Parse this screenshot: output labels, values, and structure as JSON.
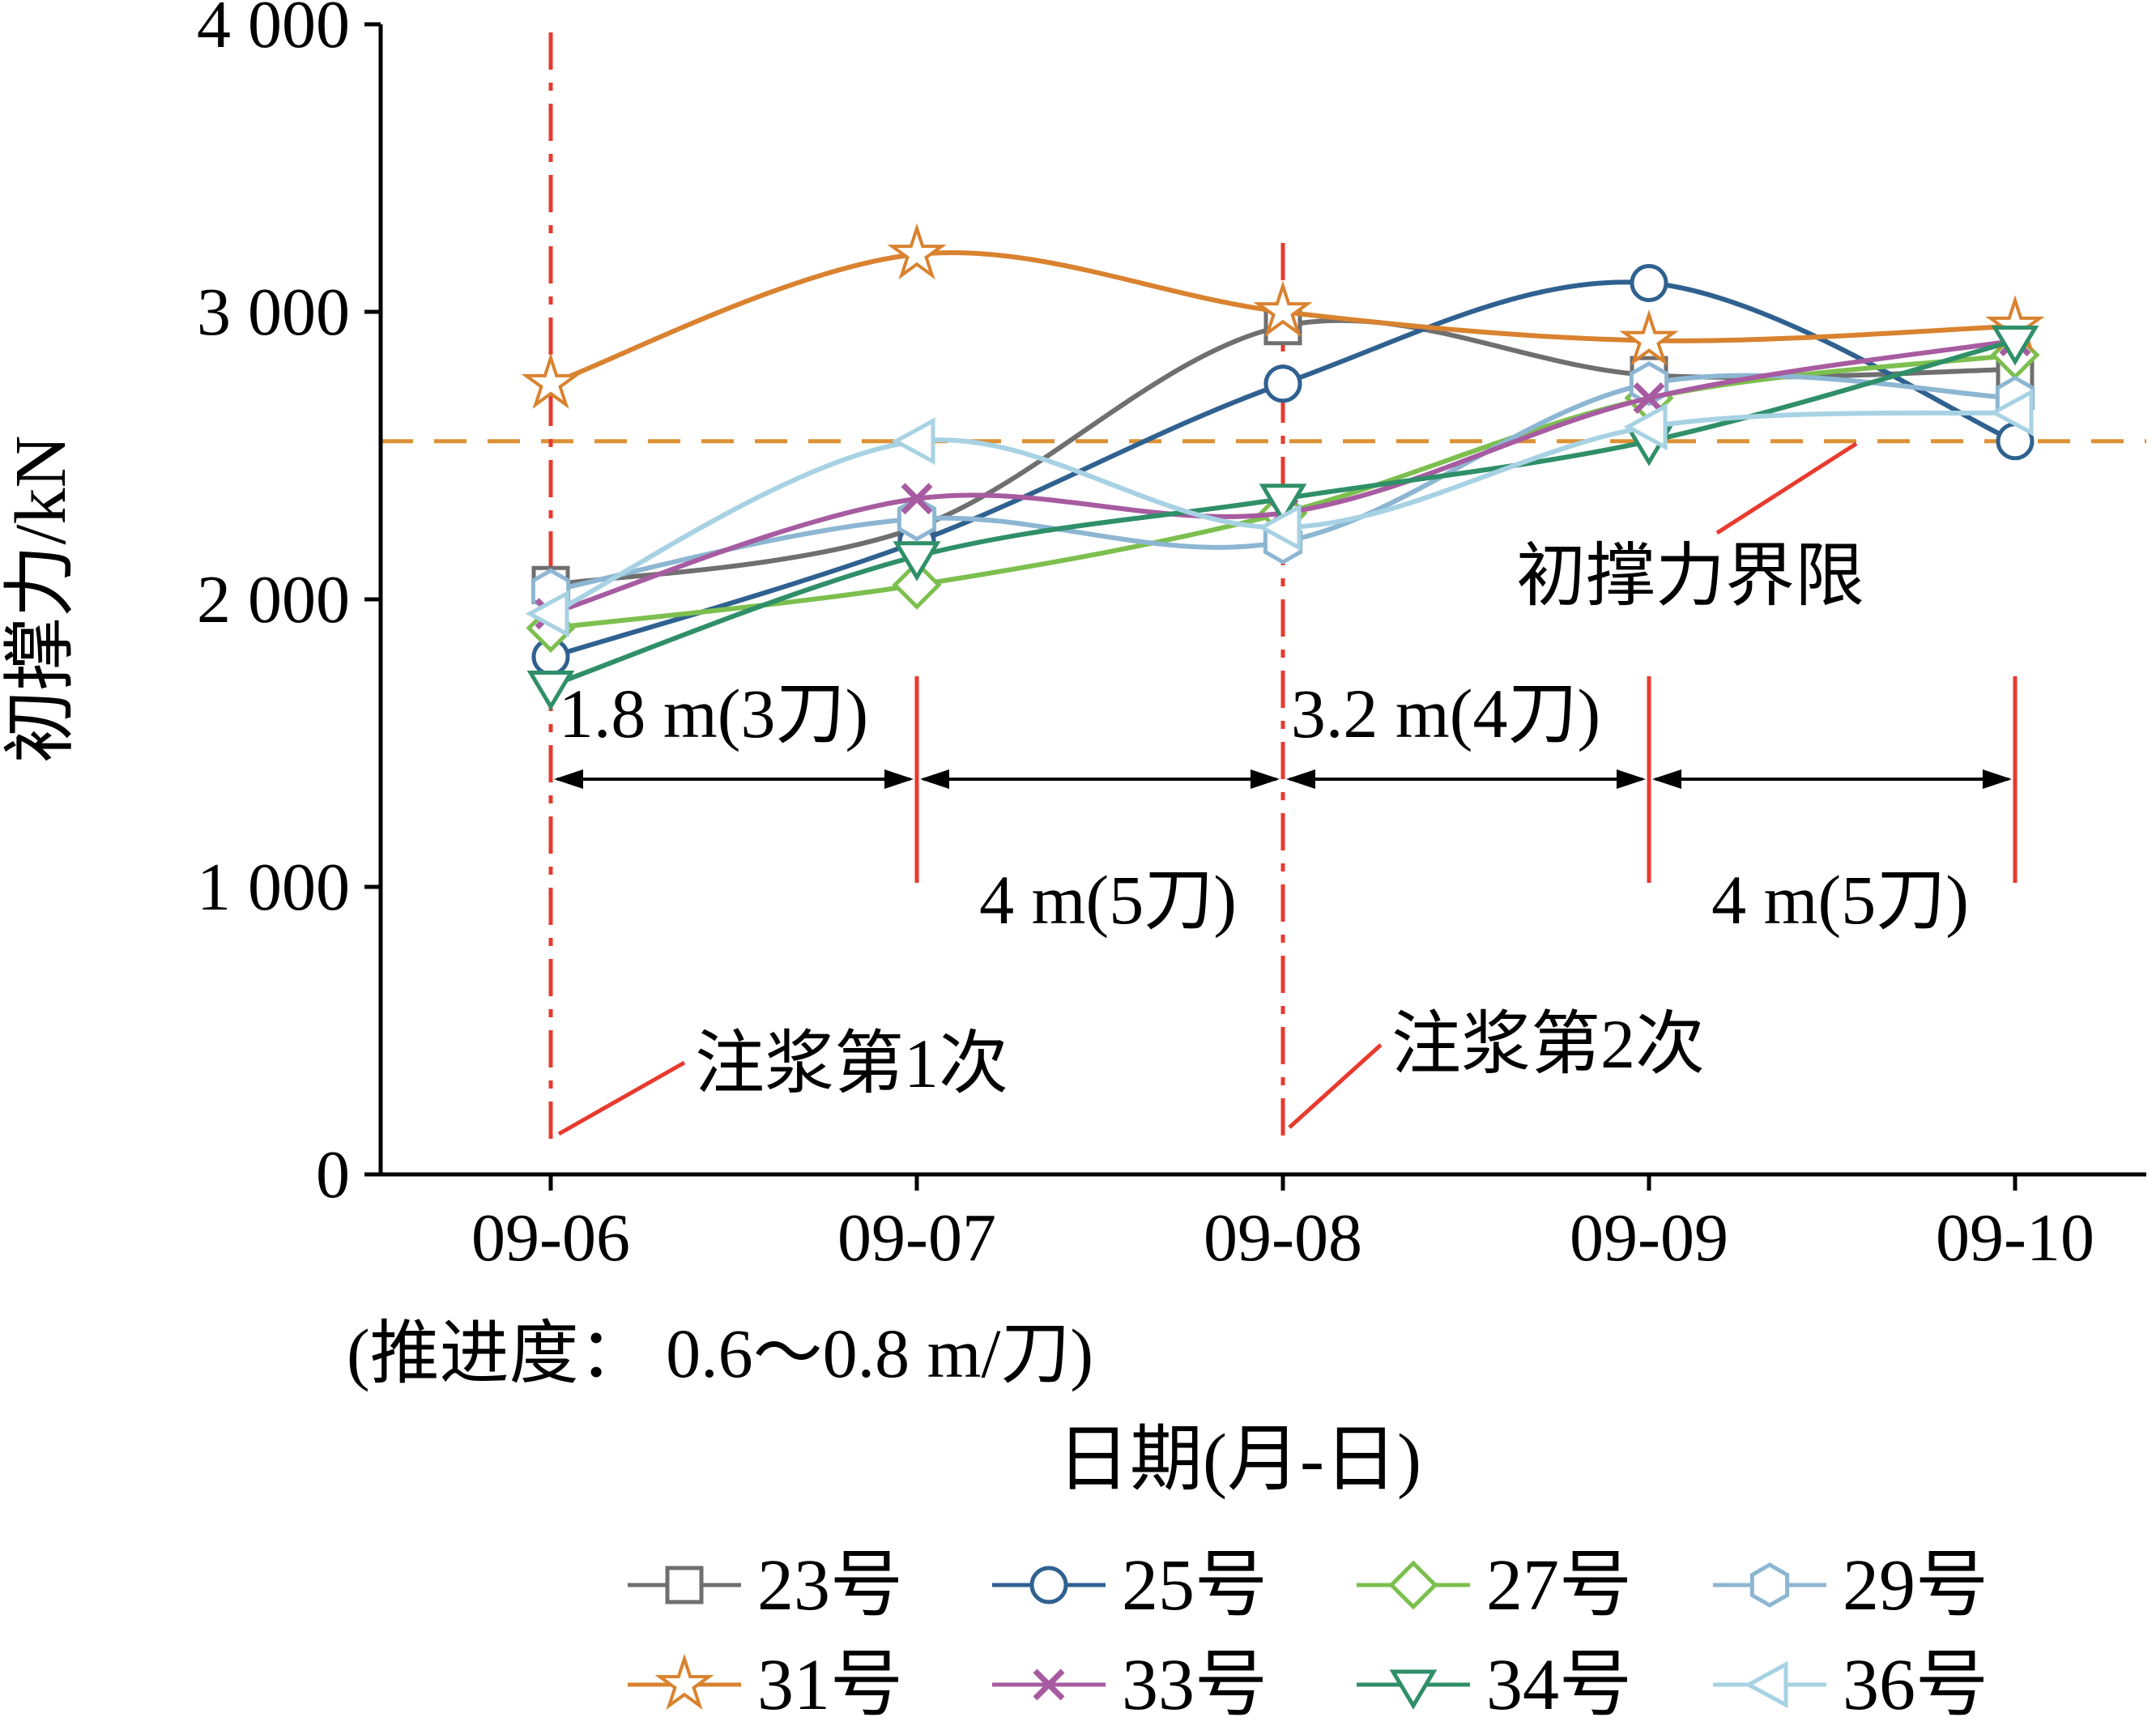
{
  "chart_data": {
    "type": "line",
    "title": "",
    "xlabel": "日期(月-日)",
    "xlabel_note": "(推进度： 0.6～0.8 m/刀)",
    "ylabel": "初撑力/kN",
    "x_categories": [
      "09-06",
      "09-07",
      "09-08",
      "09-09",
      "09-10"
    ],
    "ylim": [
      0,
      4000
    ],
    "yticks": [
      0,
      1000,
      2000,
      3000,
      4000
    ],
    "ytick_labels": [
      "0",
      "1 000",
      "2 000",
      "3 000",
      "4 000"
    ],
    "grid": false,
    "legend_position": "bottom",
    "series": [
      {
        "name": "23号",
        "marker": "square",
        "color": "#6f6f6f",
        "values": [
          2050,
          2250,
          2950,
          2780,
          2800
        ]
      },
      {
        "name": "25号",
        "marker": "circle",
        "color": "#2f6190",
        "values": [
          1800,
          2200,
          2750,
          3100,
          2550
        ]
      },
      {
        "name": "27号",
        "marker": "diamond",
        "color": "#7cbf4e",
        "values": [
          1900,
          2050,
          2300,
          2700,
          2850
        ]
      },
      {
        "name": "29号",
        "marker": "hexagon",
        "color": "#8cb6d2",
        "values": [
          2030,
          2280,
          2200,
          2750,
          2700
        ]
      },
      {
        "name": "31号",
        "marker": "star",
        "color": "#d9822f",
        "values": [
          2750,
          3200,
          3000,
          2900,
          2950
        ]
      },
      {
        "name": "33号",
        "marker": "x",
        "color": "#a75ba0",
        "values": [
          1950,
          2350,
          2300,
          2700,
          2900
        ]
      },
      {
        "name": "34号",
        "marker": "triangle-down",
        "color": "#2f8f68",
        "values": [
          1700,
          2150,
          2350,
          2550,
          2900
        ]
      },
      {
        "name": "36号",
        "marker": "triangle-left",
        "color": "#a7d2e3",
        "values": [
          1950,
          2550,
          2250,
          2600,
          2650
        ]
      }
    ],
    "limit_line": {
      "value": 2550,
      "label": "初撑力界限",
      "color": "#dd9033",
      "style": "dashed"
    },
    "grouting_events": [
      {
        "category_index": 0,
        "label": "注浆第1次"
      },
      {
        "category_index": 2,
        "label": "注浆第2次"
      }
    ],
    "advance_segments": [
      {
        "from_index": 0,
        "to_index": 1,
        "label": "1.8 m(3刀)",
        "label_side": "above"
      },
      {
        "from_index": 1,
        "to_index": 2,
        "label": "4 m(5刀)",
        "label_side": "below"
      },
      {
        "from_index": 2,
        "to_index": 3,
        "label": "3.2 m(4刀)",
        "label_side": "above"
      },
      {
        "from_index": 3,
        "to_index": 4,
        "label": "4 m(5刀)",
        "label_side": "below"
      }
    ],
    "annotation_color": "#e83a2e",
    "axis_color": "#000000"
  }
}
